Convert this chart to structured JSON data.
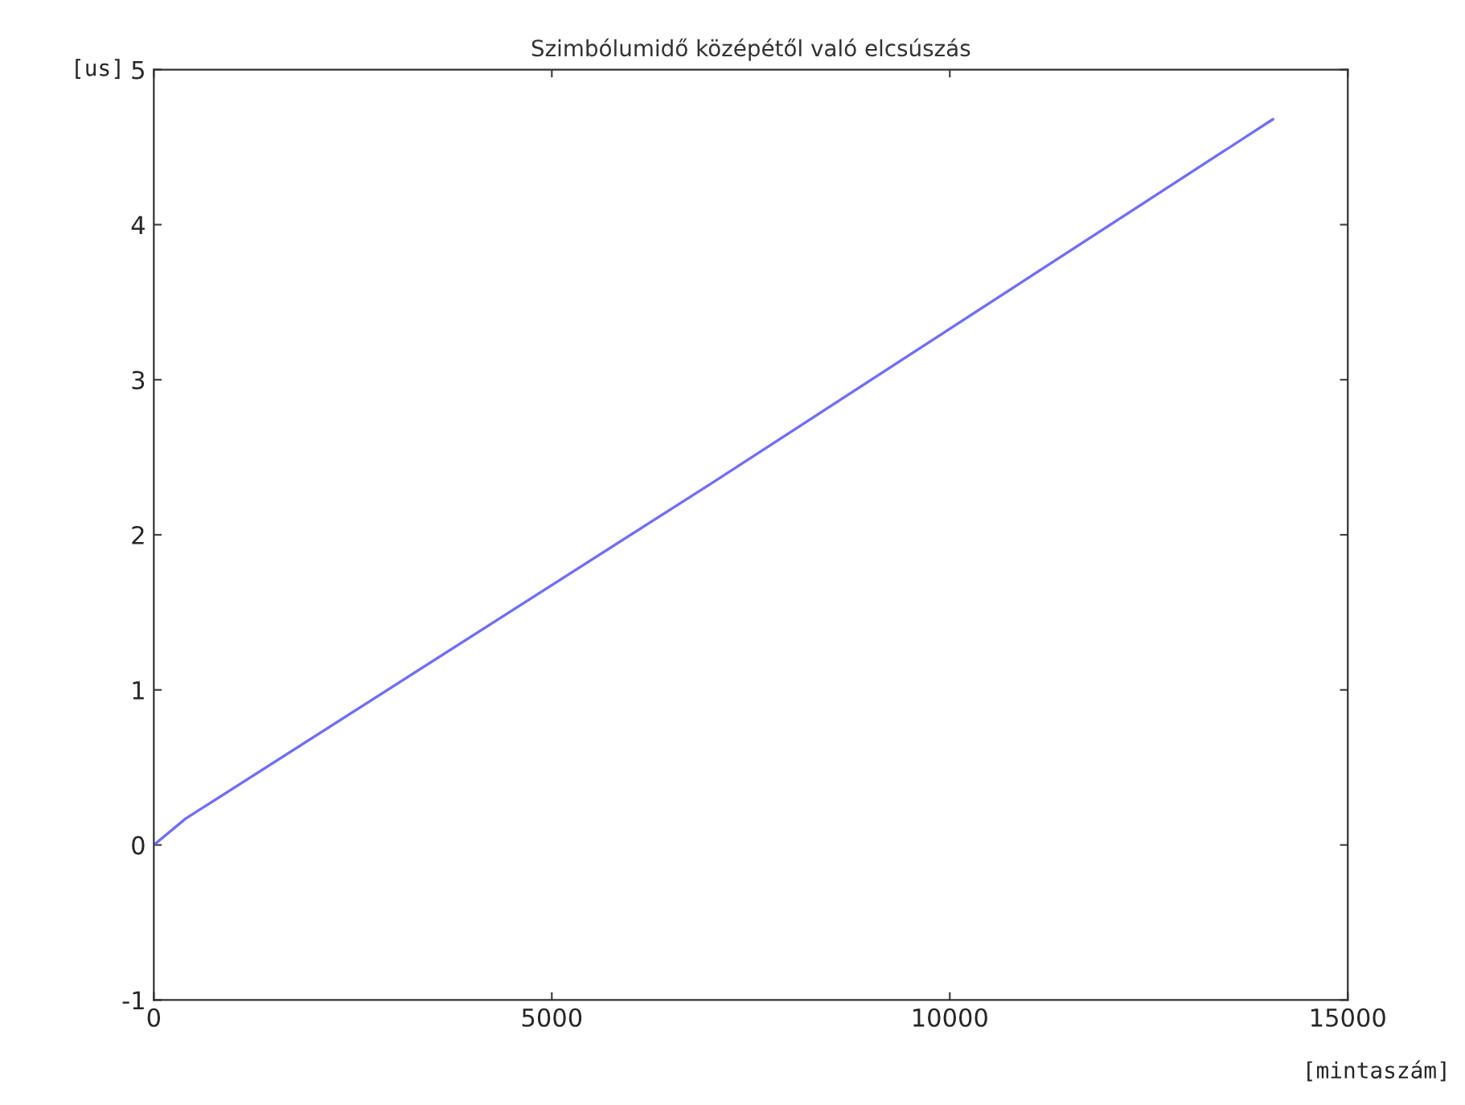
{
  "chart_data": {
    "type": "line",
    "title": "Szimbólumidő középétől való elcsúszás",
    "xlabel": "[mintaszám]",
    "ylabel": "[us]",
    "x": [
      0,
      400,
      7000,
      14060
    ],
    "series": [
      {
        "color": "#6f6ff5",
        "values": [
          0,
          0.17,
          2.33,
          4.68
        ]
      }
    ],
    "xlim": [
      0,
      15000
    ],
    "xticks": [
      0,
      5000,
      10000,
      15000
    ],
    "ylim": [
      -1,
      5
    ],
    "yticks": [
      -1,
      0,
      1,
      2,
      3,
      4,
      5
    ],
    "grid": false,
    "marker": "none",
    "line_style": "solid"
  }
}
